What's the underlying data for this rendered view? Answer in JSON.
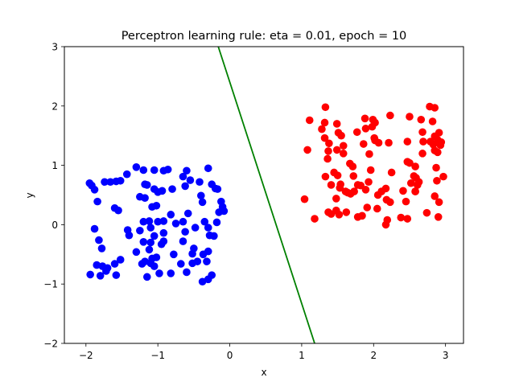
{
  "chart_data": {
    "type": "scatter",
    "title": "Perceptron learning rule: eta = 0.01, epoch = 10",
    "xlabel": "x",
    "ylabel": "y",
    "xlim": [
      -2.3,
      3.25
    ],
    "ylim": [
      -2,
      3
    ],
    "xticks": [
      "-2",
      "-1",
      "0",
      "1",
      "2",
      "3"
    ],
    "yticks": [
      "-2",
      "-1",
      "0",
      "1",
      "2",
      "3"
    ],
    "grid": false,
    "colors": {
      "class_a": "#0000ff",
      "class_b": "#ff0000",
      "boundary": "#008000"
    },
    "boundary": {
      "points": [
        [
          -0.16,
          3.0
        ],
        [
          1.18,
          -2.0
        ]
      ]
    },
    "series": [
      {
        "color": "blue",
        "points": [
          [
            -1.95,
            0.7
          ],
          [
            -1.92,
            0.66
          ],
          [
            -1.88,
            0.59
          ],
          [
            -1.84,
            0.39
          ],
          [
            -1.74,
            0.72
          ],
          [
            -1.66,
            0.72
          ],
          [
            -1.58,
            0.73
          ],
          [
            -1.52,
            0.74
          ],
          [
            -1.43,
            0.85
          ],
          [
            -1.3,
            0.97
          ],
          [
            -1.2,
            0.92
          ],
          [
            -1.05,
            0.92
          ],
          [
            -0.92,
            0.91
          ],
          [
            -0.86,
            0.93
          ],
          [
            -0.65,
            0.81
          ],
          [
            -0.6,
            0.91
          ],
          [
            -0.55,
            0.75
          ],
          [
            -0.42,
            0.72
          ],
          [
            -0.3,
            0.95
          ],
          [
            -0.2,
            0.61
          ],
          [
            -0.17,
            0.6
          ],
          [
            -0.25,
            0.68
          ],
          [
            -1.18,
            0.68
          ],
          [
            -1.15,
            0.67
          ],
          [
            -1.05,
            0.6
          ],
          [
            -1.0,
            0.55
          ],
          [
            -0.94,
            0.57
          ],
          [
            -0.8,
            0.6
          ],
          [
            -0.62,
            0.65
          ],
          [
            -0.4,
            0.49
          ],
          [
            -0.38,
            0.38
          ],
          [
            -0.12,
            0.39
          ],
          [
            -0.1,
            0.3
          ],
          [
            -0.15,
            0.21
          ],
          [
            -0.08,
            0.23
          ],
          [
            -1.6,
            0.28
          ],
          [
            -1.55,
            0.24
          ],
          [
            -1.25,
            0.47
          ],
          [
            -1.18,
            0.45
          ],
          [
            -1.08,
            0.3
          ],
          [
            -1.02,
            0.32
          ],
          [
            -0.82,
            0.17
          ],
          [
            -0.58,
            0.19
          ],
          [
            -1.2,
            0.05
          ],
          [
            -1.12,
            0.06
          ],
          [
            -1.0,
            0.05
          ],
          [
            -0.92,
            0.06
          ],
          [
            -0.75,
            0.02
          ],
          [
            -0.65,
            0.05
          ],
          [
            -0.35,
            0.05
          ],
          [
            -0.18,
            0.04
          ],
          [
            -1.88,
            -0.07
          ],
          [
            -1.42,
            -0.09
          ],
          [
            -1.4,
            -0.18
          ],
          [
            -1.25,
            -0.1
          ],
          [
            -1.1,
            -0.05
          ],
          [
            -1.05,
            -0.19
          ],
          [
            -0.92,
            -0.14
          ],
          [
            -0.62,
            -0.12
          ],
          [
            -0.48,
            -0.05
          ],
          [
            -0.3,
            -0.05
          ],
          [
            -0.28,
            -0.18
          ],
          [
            -0.22,
            -0.19
          ],
          [
            -1.82,
            -0.26
          ],
          [
            -1.2,
            -0.29
          ],
          [
            -1.1,
            -0.3
          ],
          [
            -0.95,
            -0.33
          ],
          [
            -0.92,
            -0.28
          ],
          [
            -0.65,
            -0.28
          ],
          [
            -0.5,
            -0.4
          ],
          [
            -1.78,
            -0.4
          ],
          [
            -1.3,
            -0.46
          ],
          [
            -1.12,
            -0.42
          ],
          [
            -0.78,
            -0.5
          ],
          [
            -0.52,
            -0.49
          ],
          [
            -0.37,
            -0.5
          ],
          [
            -0.3,
            -0.45
          ],
          [
            -1.52,
            -0.59
          ],
          [
            -1.18,
            -0.62
          ],
          [
            -1.08,
            -0.57
          ],
          [
            -1.02,
            -0.55
          ],
          [
            -1.6,
            -0.66
          ],
          [
            -1.22,
            -0.66
          ],
          [
            -1.1,
            -0.65
          ],
          [
            -1.05,
            -0.7
          ],
          [
            -0.68,
            -0.66
          ],
          [
            -0.52,
            -0.65
          ],
          [
            -0.45,
            -0.62
          ],
          [
            -0.32,
            -0.62
          ],
          [
            -1.85,
            -0.68
          ],
          [
            -1.77,
            -0.7
          ],
          [
            -1.7,
            -0.73
          ],
          [
            -1.72,
            -0.78
          ],
          [
            -1.58,
            -0.85
          ],
          [
            -1.94,
            -0.84
          ],
          [
            -1.8,
            -0.86
          ],
          [
            -1.15,
            -0.88
          ],
          [
            -0.98,
            -0.82
          ],
          [
            -0.82,
            -0.82
          ],
          [
            -0.6,
            -0.8
          ],
          [
            -0.38,
            -0.96
          ],
          [
            -0.3,
            -0.92
          ],
          [
            -0.25,
            -0.85
          ]
        ]
      },
      {
        "color": "red",
        "points": [
          [
            1.33,
            1.98
          ],
          [
            2.78,
            1.99
          ],
          [
            2.85,
            1.97
          ],
          [
            2.23,
            1.84
          ],
          [
            2.5,
            1.82
          ],
          [
            2.66,
            1.77
          ],
          [
            1.99,
            1.77
          ],
          [
            1.11,
            1.76
          ],
          [
            1.32,
            1.72
          ],
          [
            1.49,
            1.7
          ],
          [
            1.88,
            1.79
          ],
          [
            2.02,
            1.72
          ],
          [
            2.82,
            1.74
          ],
          [
            1.28,
            1.61
          ],
          [
            1.51,
            1.55
          ],
          [
            1.77,
            1.56
          ],
          [
            1.89,
            1.62
          ],
          [
            1.98,
            1.65
          ],
          [
            2.68,
            1.56
          ],
          [
            2.91,
            1.55
          ],
          [
            2.85,
            1.49
          ],
          [
            1.32,
            1.46
          ],
          [
            1.55,
            1.5
          ],
          [
            2.01,
            1.46
          ],
          [
            2.21,
            1.38
          ],
          [
            2.47,
            1.4
          ],
          [
            2.79,
            1.4
          ],
          [
            2.83,
            1.35
          ],
          [
            2.94,
            1.39
          ],
          [
            2.89,
            1.43
          ],
          [
            1.38,
            1.37
          ],
          [
            1.58,
            1.33
          ],
          [
            1.86,
            1.36
          ],
          [
            2.02,
            1.42
          ],
          [
            2.07,
            1.38
          ],
          [
            2.69,
            1.4
          ],
          [
            2.93,
            1.34
          ],
          [
            2.89,
            1.22
          ],
          [
            2.85,
            1.25
          ],
          [
            1.08,
            1.26
          ],
          [
            1.37,
            1.24
          ],
          [
            1.49,
            1.26
          ],
          [
            1.58,
            1.2
          ],
          [
            1.94,
            1.19
          ],
          [
            1.36,
            1.11
          ],
          [
            1.67,
            1.03
          ],
          [
            1.71,
            0.98
          ],
          [
            2.47,
            1.06
          ],
          [
            2.5,
            1.04
          ],
          [
            2.68,
            1.2
          ],
          [
            2.58,
            0.98
          ],
          [
            2.87,
            0.96
          ],
          [
            1.45,
            0.88
          ],
          [
            1.5,
            0.83
          ],
          [
            1.33,
            0.81
          ],
          [
            1.72,
            0.82
          ],
          [
            1.96,
            0.92
          ],
          [
            2.25,
            0.88
          ],
          [
            2.56,
            0.82
          ],
          [
            2.59,
            0.79
          ],
          [
            2.63,
            0.72
          ],
          [
            2.97,
            0.81
          ],
          [
            2.88,
            0.74
          ],
          [
            1.41,
            0.67
          ],
          [
            1.53,
            0.62
          ],
          [
            1.61,
            0.56
          ],
          [
            1.68,
            0.52
          ],
          [
            1.73,
            0.56
          ],
          [
            1.78,
            0.67
          ],
          [
            1.82,
            0.66
          ],
          [
            1.93,
            0.72
          ],
          [
            2.11,
            0.56
          ],
          [
            2.17,
            0.61
          ],
          [
            2.41,
            0.57
          ],
          [
            2.52,
            0.7
          ],
          [
            2.61,
            0.67
          ],
          [
            1.04,
            0.43
          ],
          [
            1.48,
            0.44
          ],
          [
            1.64,
            0.54
          ],
          [
            2.06,
            0.5
          ],
          [
            2.18,
            0.42
          ],
          [
            2.58,
            0.56
          ],
          [
            2.85,
            0.48
          ],
          [
            2.91,
            0.38
          ],
          [
            2.23,
            0.38
          ],
          [
            2.45,
            0.39
          ],
          [
            1.91,
            0.29
          ],
          [
            2.05,
            0.27
          ],
          [
            1.37,
            0.21
          ],
          [
            1.48,
            0.24
          ],
          [
            1.52,
            0.17
          ],
          [
            1.41,
            0.18
          ],
          [
            1.62,
            0.21
          ],
          [
            1.78,
            0.13
          ],
          [
            1.84,
            0.15
          ],
          [
            2.19,
            0.08
          ],
          [
            2.38,
            0.12
          ],
          [
            2.47,
            0.1
          ],
          [
            2.9,
            0.13
          ],
          [
            1.18,
            0.1
          ],
          [
            2.17,
            0.0
          ],
          [
            2.74,
            0.2
          ],
          [
            2.58,
            0.56
          ],
          [
            1.54,
            0.68
          ],
          [
            1.89,
            0.59
          ]
        ]
      }
    ]
  }
}
